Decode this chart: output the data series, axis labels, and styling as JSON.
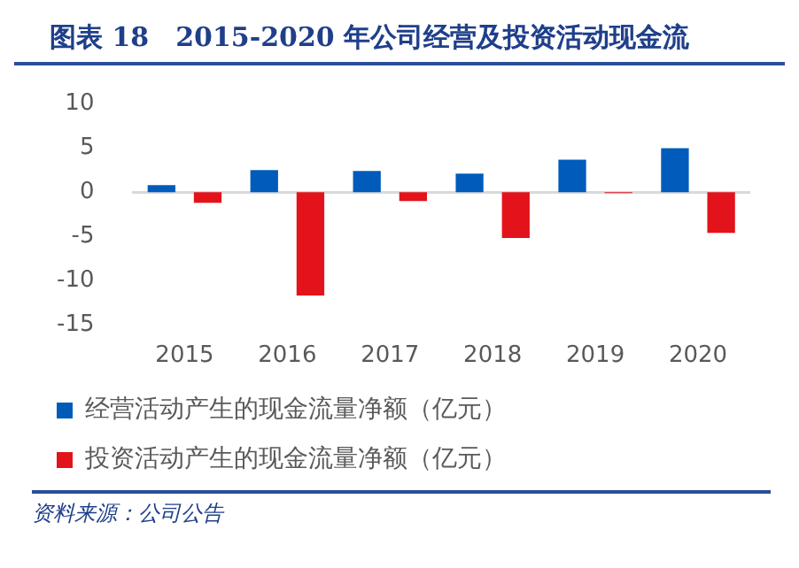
{
  "chart_data": {
    "type": "bar",
    "title": "图表 18　2015-2020 年公司经营及投资活动现金流",
    "categories": [
      "2015",
      "2016",
      "2017",
      "2018",
      "2019",
      "2020"
    ],
    "series": [
      {
        "name": "经营活动产生的现金流量净额（亿元）",
        "color": "#005bbb",
        "values": [
          0.8,
          2.5,
          2.4,
          2.1,
          3.7,
          5.0
        ]
      },
      {
        "name": "投资活动产生的现金流量净额（亿元）",
        "color": "#e3131b",
        "values": [
          -1.2,
          -11.7,
          -1.0,
          -5.2,
          -0.1,
          -4.6
        ]
      }
    ],
    "ref_lines": [
      {
        "axis": "y",
        "value": 0,
        "color": "#d9d9d9"
      }
    ],
    "ylim": [
      -15,
      10
    ],
    "yticks": [
      -15,
      -10,
      -5,
      0,
      5,
      10
    ],
    "grid": false,
    "legend": "bottom",
    "annotations": [
      "资料来源：公司公告"
    ]
  }
}
